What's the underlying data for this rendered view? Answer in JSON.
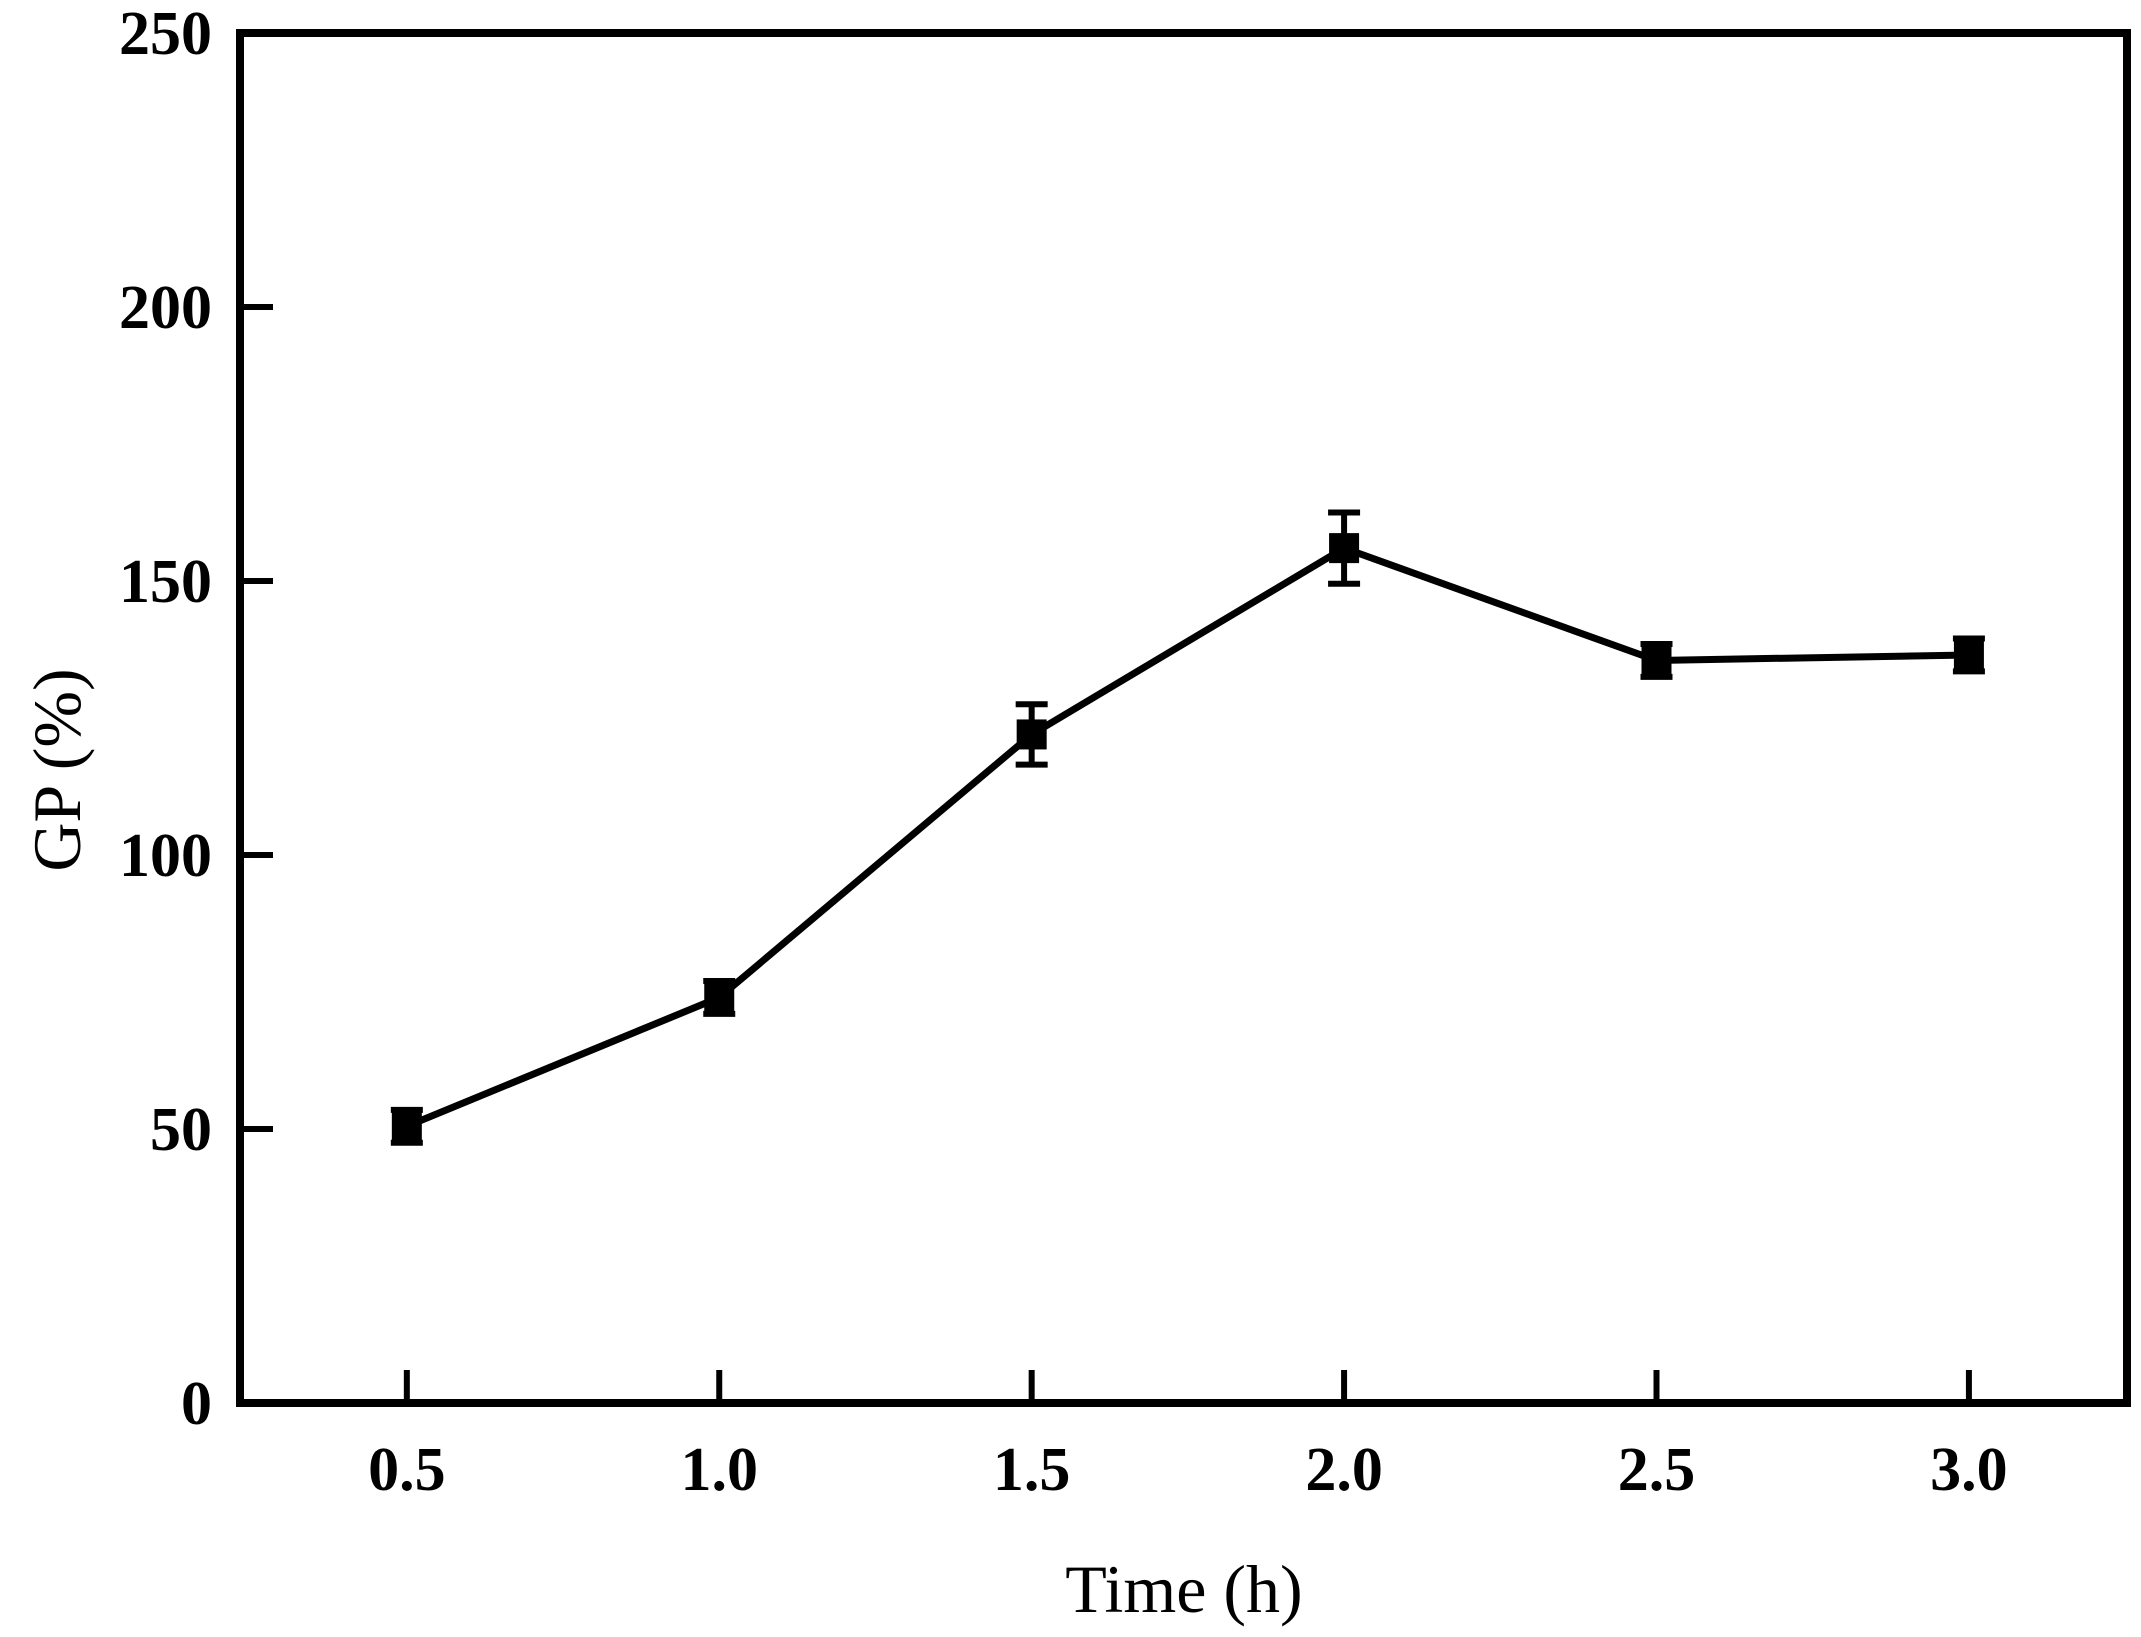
{
  "chart_data": {
    "type": "line",
    "title": "",
    "xlabel": "Time (h)",
    "ylabel": "GP (%)",
    "x": [
      0.5,
      1.0,
      1.5,
      2.0,
      2.5,
      3.0
    ],
    "series": [
      {
        "name": "GP",
        "values": [
          50.5,
          74,
          122,
          156,
          135.5,
          136.5
        ],
        "yerr": [
          3,
          3,
          5.5,
          6.5,
          3,
          3
        ]
      }
    ],
    "x_tick_labels": [
      "0.5",
      "1.0",
      "1.5",
      "2.0",
      "2.5",
      "3.0"
    ],
    "y_ticks": [
      0,
      50,
      100,
      150,
      200,
      250
    ],
    "y_tick_labels": [
      "0",
      "50",
      "100",
      "150",
      "200",
      "250"
    ],
    "xlim": [
      0.233,
      3.253
    ],
    "ylim": [
      0,
      250
    ],
    "grid": false,
    "legend_position": "none",
    "marker": "filled-square",
    "line_color": "#000000",
    "marker_color": "#000000",
    "axis_color": "#000000",
    "background_color": "#ffffff"
  }
}
